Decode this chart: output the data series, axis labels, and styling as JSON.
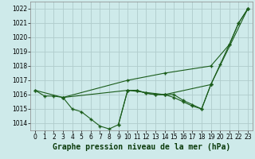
{
  "title": "Graphe pression niveau de la mer (hPa)",
  "background_color": "#ceeaea",
  "grid_color": "#b0cccc",
  "line_color": "#1a5c1a",
  "xlim": [
    -0.5,
    23.5
  ],
  "ylim": [
    1013.5,
    1022.5
  ],
  "yticks": [
    1014,
    1015,
    1016,
    1017,
    1018,
    1019,
    1020,
    1021,
    1022
  ],
  "xticks": [
    0,
    1,
    2,
    3,
    4,
    5,
    6,
    7,
    8,
    9,
    10,
    11,
    12,
    13,
    14,
    15,
    16,
    17,
    18,
    19,
    20,
    21,
    22,
    23
  ],
  "series": [
    {
      "x": [
        0,
        1,
        2,
        3,
        4,
        5,
        6,
        7,
        8,
        9,
        10,
        11,
        12,
        13,
        14,
        15,
        16,
        17,
        18,
        19,
        20,
        21,
        22,
        23
      ],
      "y": [
        1016.3,
        1015.9,
        1015.9,
        1015.8,
        1015.0,
        1014.8,
        1014.3,
        1013.8,
        1013.6,
        1013.9,
        1016.3,
        1016.3,
        1016.1,
        1016.0,
        1016.0,
        1015.8,
        1015.5,
        1015.2,
        1015.0,
        1016.7,
        1018.1,
        1019.5,
        1021.0,
        1022.0
      ]
    },
    {
      "x": [
        3,
        10,
        14,
        19,
        21,
        22,
        23
      ],
      "y": [
        1015.8,
        1017.0,
        1017.5,
        1018.0,
        1019.5,
        1021.0,
        1022.0
      ]
    },
    {
      "x": [
        0,
        3,
        10,
        14,
        19,
        23
      ],
      "y": [
        1016.3,
        1015.8,
        1016.3,
        1016.0,
        1016.7,
        1022.0
      ]
    },
    {
      "x": [
        9,
        10,
        11,
        12,
        13,
        14,
        15,
        16,
        17,
        18,
        19
      ],
      "y": [
        1013.9,
        1016.3,
        1016.3,
        1016.1,
        1016.0,
        1016.0,
        1016.0,
        1015.6,
        1015.3,
        1015.0,
        1016.7
      ]
    }
  ],
  "marker": "+",
  "markersize": 3,
  "markeredgewidth": 1.0,
  "linewidth": 0.8,
  "title_fontsize": 7,
  "tick_fontsize": 5.5
}
